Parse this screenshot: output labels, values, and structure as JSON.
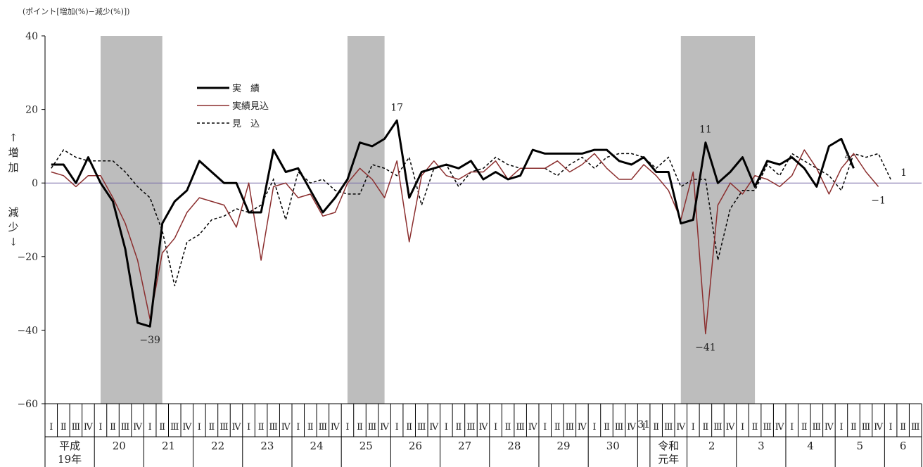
{
  "unit_note": "(ポイント[増加(%)−減少(%)])",
  "y_top_label": [
    "↑",
    "増",
    "加"
  ],
  "y_bottom_label": [
    "減",
    "少",
    "↓"
  ],
  "legend": [
    {
      "key": "actual",
      "label": "実　績"
    },
    {
      "key": "estimate",
      "label": "実績見込"
    },
    {
      "key": "forecast",
      "label": "見　込"
    }
  ],
  "colors": {
    "actual": "#000000",
    "estimate": "#8b2e2e",
    "forecast": "#000000",
    "shade": "#bdbdbd",
    "zero_line": "#7b6fa8"
  },
  "chart_data": {
    "type": "line",
    "ylim": [
      -60,
      40
    ],
    "yticks": [
      40,
      20,
      0,
      -20,
      -40,
      -60
    ],
    "ytick_labels": [
      "40",
      "20",
      "0",
      "−20",
      "−40",
      "−60"
    ],
    "quarter_labels": [
      "Ⅰ",
      "Ⅱ",
      "Ⅲ",
      "Ⅳ"
    ],
    "years": [
      {
        "label": [
          "平成",
          "19年"
        ],
        "quarters": 4
      },
      {
        "label": [
          "20"
        ],
        "quarters": 4
      },
      {
        "label": [
          "21"
        ],
        "quarters": 4
      },
      {
        "label": [
          "22"
        ],
        "quarters": 4
      },
      {
        "label": [
          "23"
        ],
        "quarters": 4
      },
      {
        "label": [
          "24"
        ],
        "quarters": 4
      },
      {
        "label": [
          "25"
        ],
        "quarters": 4
      },
      {
        "label": [
          "26"
        ],
        "quarters": 4
      },
      {
        "label": [
          "27"
        ],
        "quarters": 4
      },
      {
        "label": [
          "28"
        ],
        "quarters": 4
      },
      {
        "label": [
          "29"
        ],
        "quarters": 4
      },
      {
        "label": [
          "30"
        ],
        "quarters": 4
      },
      {
        "label": [
          "31"
        ],
        "quarters": 1
      },
      {
        "label": [
          "令和",
          "元年"
        ],
        "quarters": 3
      },
      {
        "label": [
          "2"
        ],
        "quarters": 4
      },
      {
        "label": [
          "3"
        ],
        "quarters": 4
      },
      {
        "label": [
          "4"
        ],
        "quarters": 4
      },
      {
        "label": [
          "5"
        ],
        "quarters": 4
      },
      {
        "label": [
          "6"
        ],
        "quarters": 3
      }
    ],
    "recession_periods": [
      [
        4,
        9
      ],
      [
        24,
        27
      ],
      [
        51,
        57
      ]
    ],
    "series": [
      {
        "key": "actual",
        "values": [
          5,
          5,
          0,
          7,
          0,
          -5,
          -18,
          -38,
          -39,
          -11,
          -5,
          -2,
          6,
          3,
          0,
          0,
          -8,
          -8,
          9,
          3,
          4,
          -2,
          -8,
          -4,
          1,
          11,
          10,
          12,
          17,
          -4,
          3,
          4,
          5,
          4,
          6,
          1,
          3,
          1,
          2,
          9,
          8,
          8,
          8,
          8,
          9,
          9,
          6,
          5,
          7,
          3,
          3,
          -11,
          -10,
          11,
          0,
          3,
          7,
          -1,
          6,
          5,
          7,
          4,
          -1,
          10,
          12,
          4
        ]
      },
      {
        "key": "estimate",
        "values": [
          3,
          2,
          -1,
          2,
          2,
          -4,
          -11,
          -21,
          -37,
          -19,
          -15,
          -8,
          -4,
          -5,
          -6,
          -12,
          0,
          -21,
          -1,
          0,
          -4,
          -3,
          -9,
          -8,
          0,
          4,
          1,
          -4,
          6,
          -16,
          2,
          6,
          2,
          1,
          3,
          3,
          6,
          1,
          4,
          4,
          4,
          6,
          3,
          5,
          8,
          4,
          1,
          1,
          5,
          2,
          -2,
          -10,
          3,
          -41,
          -6,
          0,
          -3,
          2,
          1,
          -1,
          2,
          9,
          4,
          -3,
          4,
          8,
          3,
          -1
        ]
      },
      {
        "key": "forecast",
        "values": [
          4,
          9,
          7,
          6,
          6,
          6,
          3,
          -1,
          -4,
          -13,
          -28,
          -16,
          -14,
          -10,
          -9,
          -7,
          -8,
          -6,
          1,
          -10,
          3,
          0,
          1,
          -2,
          -3,
          -3,
          5,
          4,
          2,
          7,
          -6,
          4,
          5,
          -1,
          3,
          4,
          7,
          5,
          4,
          4,
          4,
          2,
          5,
          7,
          4,
          7,
          8,
          8,
          7,
          4,
          7,
          -1,
          1,
          1,
          -21,
          -7,
          -2,
          -2,
          5,
          2,
          8,
          6,
          4,
          2,
          -2,
          8,
          7,
          8,
          1
        ]
      }
    ],
    "annotations": [
      {
        "label": "−39",
        "series": "actual",
        "index": 8,
        "pos": "below"
      },
      {
        "label": "17",
        "series": "actual",
        "index": 28,
        "pos": "above"
      },
      {
        "label": "11",
        "series": "actual",
        "index": 53,
        "pos": "above"
      },
      {
        "label": "−41",
        "series": "estimate",
        "index": 53,
        "pos": "below"
      },
      {
        "label": "4",
        "series": "actual",
        "index": 65,
        "pos": "left"
      },
      {
        "label": "−1",
        "series": "estimate",
        "index": 67,
        "pos": "below"
      },
      {
        "label": "1",
        "series": "forecast",
        "index": 68,
        "pos": "right"
      }
    ]
  }
}
